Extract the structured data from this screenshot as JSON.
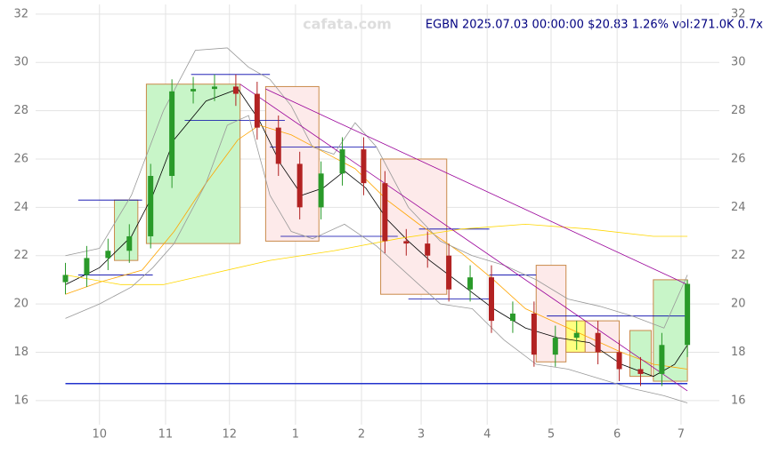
{
  "chart_data": {
    "type": "candlestick",
    "title": "EGBN 2025.07.03 00:00:00 $20.83 1.26% vol:271.0K 0.7x",
    "watermark": "cafata.com",
    "xlim": [
      0,
      321
    ],
    "ylim": [
      15,
      32.4
    ],
    "xticks": [
      {
        "value": 30,
        "label": "10"
      },
      {
        "value": 61,
        "label": "11"
      },
      {
        "value": 91,
        "label": "12"
      },
      {
        "value": 122,
        "label": "1"
      },
      {
        "value": 153,
        "label": "2"
      },
      {
        "value": 181,
        "label": "3"
      },
      {
        "value": 212,
        "label": "4"
      },
      {
        "value": 242,
        "label": "5"
      },
      {
        "value": 273,
        "label": "6"
      },
      {
        "value": 303,
        "label": "7"
      }
    ],
    "yticks": [
      16,
      18,
      20,
      22,
      24,
      26,
      28,
      30,
      32
    ],
    "grid": true,
    "up_color": "#2a9a2a",
    "down_color": "#b22222",
    "candles": {
      "x": [
        14,
        24,
        34,
        44,
        54,
        64,
        74,
        84,
        94,
        104,
        114,
        124,
        134,
        144,
        154,
        164,
        174,
        184,
        194,
        204,
        214,
        224,
        234,
        244,
        254,
        264,
        274,
        284,
        294,
        306
      ],
      "open": [
        20.9,
        21.2,
        21.9,
        22.2,
        22.8,
        25.3,
        28.8,
        28.9,
        29.0,
        28.7,
        27.3,
        25.8,
        24.0,
        25.4,
        26.4,
        25.0,
        22.6,
        22.5,
        22.0,
        20.6,
        21.1,
        19.3,
        19.6,
        17.9,
        18.6,
        18.8,
        18.0,
        17.3,
        17.1,
        18.3
      ],
      "high": [
        21.7,
        22.4,
        22.7,
        23.3,
        25.8,
        29.3,
        29.4,
        29.5,
        29.5,
        29.2,
        27.8,
        26.3,
        25.9,
        26.9,
        26.9,
        25.5,
        23.1,
        23.0,
        22.5,
        21.6,
        21.6,
        20.1,
        20.1,
        19.1,
        19.3,
        19.3,
        18.5,
        17.8,
        18.8,
        21.0
      ],
      "low": [
        20.4,
        20.7,
        21.4,
        21.7,
        22.3,
        24.8,
        28.3,
        28.4,
        28.2,
        26.8,
        25.3,
        23.5,
        23.5,
        24.9,
        24.5,
        22.1,
        22.0,
        21.5,
        20.1,
        20.1,
        18.8,
        18.8,
        17.4,
        17.4,
        18.1,
        17.5,
        16.8,
        16.6,
        16.6,
        17.8
      ],
      "close": [
        21.2,
        21.9,
        22.2,
        22.8,
        25.3,
        28.8,
        28.9,
        29.0,
        28.7,
        27.3,
        25.8,
        24.0,
        25.4,
        26.4,
        25.0,
        22.6,
        22.5,
        22.0,
        20.6,
        21.1,
        19.3,
        19.6,
        17.9,
        18.6,
        18.8,
        18.0,
        17.3,
        17.1,
        18.3,
        20.83
      ]
    },
    "boxes": [
      {
        "color": "#c8f5c8",
        "x": [
          37,
          48
        ],
        "y": [
          21.8,
          24.3
        ]
      },
      {
        "color": "#c8f5c8",
        "x": [
          52,
          96
        ],
        "y": [
          22.5,
          29.1
        ]
      },
      {
        "color": "#fdeaea",
        "x": [
          108,
          133
        ],
        "y": [
          22.6,
          29.0
        ]
      },
      {
        "color": "#fdeaea",
        "x": [
          162,
          193
        ],
        "y": [
          20.4,
          26.0
        ]
      },
      {
        "color": "#fdeaea",
        "x": [
          235,
          249
        ],
        "y": [
          17.6,
          21.6
        ]
      },
      {
        "color": "#ffff80",
        "x": [
          249,
          258
        ],
        "y": [
          18.0,
          19.3
        ]
      },
      {
        "color": "#fdeaea",
        "x": [
          258,
          274
        ],
        "y": [
          18.0,
          19.3
        ]
      },
      {
        "color": "#c8f5c8",
        "x": [
          279,
          289
        ],
        "y": [
          17.0,
          18.9
        ]
      },
      {
        "color": "#c8f5c8",
        "x": [
          290,
          306
        ],
        "y": [
          16.8,
          21.0
        ]
      }
    ],
    "lines": [
      {
        "color": "#000000",
        "x": [
          14,
          30,
          45,
          55,
          65,
          80,
          95,
          105,
          115,
          125,
          135,
          145,
          155,
          165,
          175,
          185,
          200,
          215,
          230,
          245,
          260,
          275,
          290,
          300,
          306
        ],
        "values": [
          20.8,
          21.5,
          22.8,
          24.5,
          26.8,
          28.4,
          28.9,
          27.6,
          25.8,
          24.5,
          24.8,
          25.5,
          24.8,
          23.5,
          22.6,
          21.8,
          20.8,
          19.8,
          19.0,
          18.6,
          18.4,
          17.5,
          17.0,
          17.5,
          18.3
        ]
      },
      {
        "color": "#ffa500",
        "x": [
          14,
          30,
          50,
          65,
          80,
          95,
          105,
          120,
          135,
          150,
          165,
          180,
          200,
          215,
          230,
          245,
          260,
          275,
          290,
          306
        ],
        "values": [
          20.4,
          20.9,
          21.4,
          23.0,
          25.0,
          26.8,
          27.4,
          27.0,
          26.3,
          25.6,
          24.3,
          23.3,
          22.1,
          21.0,
          19.8,
          19.2,
          18.6,
          18.0,
          17.5,
          17.3
        ]
      },
      {
        "color": "#ffd700",
        "x": [
          14,
          40,
          60,
          80,
          110,
          140,
          170,
          200,
          230,
          260,
          290,
          306
        ],
        "values": [
          21.2,
          20.8,
          20.8,
          21.2,
          21.8,
          22.2,
          22.7,
          23.1,
          23.3,
          23.1,
          22.8,
          22.8
        ]
      },
      {
        "color": "#999999",
        "x": [
          14,
          30,
          45,
          60,
          75,
          90,
          100,
          110,
          120,
          130,
          140,
          150,
          160,
          175,
          190,
          205,
          220,
          235,
          250,
          265,
          280,
          295,
          306
        ],
        "values": [
          22.0,
          22.3,
          24.5,
          28.0,
          30.5,
          30.6,
          29.8,
          29.3,
          28.2,
          26.5,
          26.2,
          27.5,
          26.5,
          24.0,
          22.6,
          22.0,
          21.6,
          21.0,
          20.2,
          19.9,
          19.5,
          19.0,
          21.2
        ]
      },
      {
        "color": "#999999",
        "x": [
          14,
          30,
          45,
          55,
          65,
          80,
          90,
          100,
          110,
          120,
          130,
          145,
          160,
          175,
          190,
          205,
          220,
          235,
          250,
          265,
          280,
          295,
          306
        ],
        "values": [
          19.4,
          20.0,
          20.7,
          21.5,
          22.5,
          25.0,
          27.4,
          27.8,
          24.5,
          23.0,
          22.7,
          23.3,
          22.4,
          21.2,
          20.0,
          19.8,
          18.5,
          17.5,
          17.3,
          16.9,
          16.5,
          16.2,
          15.9
        ]
      },
      {
        "color": "#990099",
        "x": [
          108,
          306
        ],
        "values": [
          28.9,
          20.8
        ]
      },
      {
        "color": "#990099",
        "x": [
          96,
          306
        ],
        "values": [
          29.1,
          16.4
        ]
      }
    ],
    "levels": [
      {
        "x": [
          20,
          50
        ],
        "y": 24.3
      },
      {
        "x": [
          20,
          55
        ],
        "y": 21.2
      },
      {
        "x": [
          73,
          110
        ],
        "y": 29.5
      },
      {
        "x": [
          70,
          117
        ],
        "y": 27.6
      },
      {
        "x": [
          110,
          160
        ],
        "y": 26.5
      },
      {
        "x": [
          115,
          170
        ],
        "y": 22.8
      },
      {
        "x": [
          180,
          213
        ],
        "y": 23.1
      },
      {
        "x": [
          175,
          213
        ],
        "y": 20.2
      },
      {
        "x": [
          213,
          235
        ],
        "y": 21.2
      },
      {
        "x": [
          240,
          305
        ],
        "y": 19.5
      }
    ],
    "baseline": 16.7
  }
}
